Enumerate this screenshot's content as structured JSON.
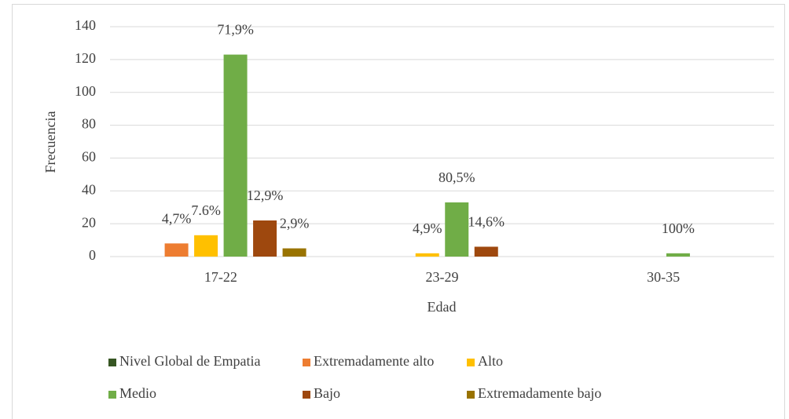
{
  "chart_data": {
    "type": "bar",
    "x_label": "Edad",
    "y_label": "Frecuencia",
    "categories": [
      "17-22",
      "23-29",
      "30-35"
    ],
    "series": [
      {
        "name": "Nivel Global de Empatia",
        "color": "#375623",
        "values": [
          null,
          null,
          null
        ]
      },
      {
        "name": "Extremadamente  alto",
        "color": "#ed7d31",
        "values": [
          8,
          null,
          null
        ],
        "value_labels": [
          "4,7%",
          null,
          null
        ]
      },
      {
        "name": "Alto",
        "color": "#ffc000",
        "values": [
          13,
          2,
          null
        ],
        "value_labels": [
          "7.6%",
          "4,9%",
          null
        ]
      },
      {
        "name": "Medio",
        "color": "#70ad47",
        "values": [
          123,
          33,
          2
        ],
        "value_labels": [
          "71,9%",
          "80,5%",
          "100%"
        ]
      },
      {
        "name": "Bajo",
        "color": "#9e480e",
        "values": [
          22,
          6,
          null
        ],
        "value_labels": [
          "12,9%",
          "14,6%",
          null
        ]
      },
      {
        "name": "Extremadamente  bajo",
        "color": "#997300",
        "values": [
          5,
          null,
          null
        ],
        "value_labels": [
          "2,9%",
          null,
          null
        ]
      }
    ],
    "ylim": [
      0,
      140
    ],
    "yticks": [
      0,
      20,
      40,
      60,
      80,
      100,
      120,
      140
    ],
    "grid": true,
    "legend": "bottom"
  }
}
